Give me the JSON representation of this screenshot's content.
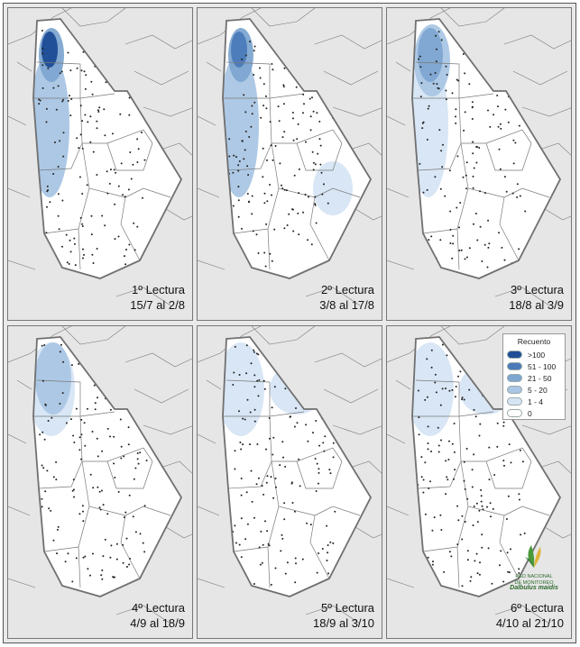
{
  "panels": [
    {
      "reading": "1º Lectura",
      "dates": "15/7 al 2/8",
      "hotspots": [
        {
          "level": ">100",
          "region": "north-west"
        },
        {
          "level": "51 - 100",
          "region": "north-west"
        },
        {
          "level": "21 - 50",
          "region": "north-west"
        },
        {
          "level": "5 - 20",
          "region": "west"
        },
        {
          "level": "1 - 4",
          "region": "west"
        }
      ]
    },
    {
      "reading": "2º Lectura",
      "dates": "3/8 al 17/8",
      "hotspots": [
        {
          "level": "51 - 100",
          "region": "north-west"
        },
        {
          "level": "21 - 50",
          "region": "north-west"
        },
        {
          "level": "5 - 20",
          "region": "west"
        },
        {
          "level": "1 - 4",
          "region": "east"
        }
      ]
    },
    {
      "reading": "3º Lectura",
      "dates": "18/8 al 3/9",
      "hotspots": [
        {
          "level": "21 - 50",
          "region": "north-west"
        },
        {
          "level": "5 - 20",
          "region": "north-west"
        },
        {
          "level": "1 - 4",
          "region": "west"
        }
      ]
    },
    {
      "reading": "4º Lectura",
      "dates": "4/9 al 18/9",
      "hotspots": [
        {
          "level": "5 - 20",
          "region": "north-west"
        },
        {
          "level": "1 - 4",
          "region": "north-west"
        }
      ]
    },
    {
      "reading": "5º Lectura",
      "dates": "18/9 al 3/10",
      "hotspots": [
        {
          "level": "1 - 4",
          "region": "north-west"
        },
        {
          "level": "1 - 4",
          "region": "north-east"
        }
      ]
    },
    {
      "reading": "6º Lectura",
      "dates": "4/10 al 21/10",
      "hotspots": [
        {
          "level": "1 - 4",
          "region": "north-west"
        },
        {
          "level": "1 - 4",
          "region": "north-east"
        }
      ]
    }
  ],
  "legend": {
    "title": "Recuento",
    "items": [
      {
        "label": ">100",
        "color": "#1f4e96"
      },
      {
        "label": "51 - 100",
        "color": "#4a7ab8"
      },
      {
        "label": "21 - 50",
        "color": "#7ea6d1"
      },
      {
        "label": "5 - 20",
        "color": "#aac6e4"
      },
      {
        "label": "1 - 4",
        "color": "#d6e5f4"
      },
      {
        "label": "0",
        "color": "#ffffff"
      }
    ]
  },
  "logo": {
    "line1": "RED NACIONAL",
    "line2": "DE MONITOREO",
    "line3": "Dalbulus maidis"
  },
  "colors": {
    "outside": "#e6e6e6",
    "region": "#ffffff",
    "boundary": "#7a7a7a",
    "outline": "#707070",
    "trap_point": "#222222"
  }
}
